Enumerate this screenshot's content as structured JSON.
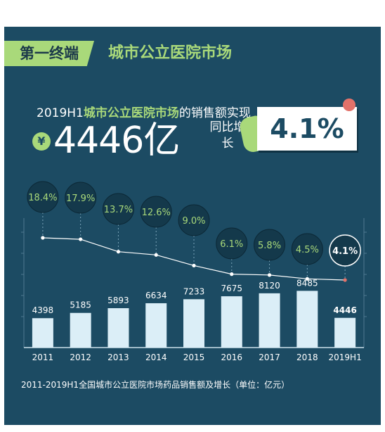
{
  "header": {
    "tag": "第一终端",
    "title": "城市公立医院市场"
  },
  "headline": {
    "prefix": "2019H1",
    "highlight": "城市公立医院市场",
    "suffix": "的销售额实现",
    "currency_symbol": "¥",
    "value": "4446亿",
    "yoy_label": "同比增长",
    "yoy_value": "4.1%"
  },
  "chart_data": {
    "type": "bar",
    "categories": [
      "2011",
      "2012",
      "2013",
      "2014",
      "2015",
      "2016",
      "2017",
      "2018",
      "2019H1"
    ],
    "series": [
      {
        "values": [
          4398,
          5185,
          5893,
          6634,
          7233,
          7675,
          8120,
          8485,
          4446
        ]
      },
      {
        "type": "line",
        "values": [
          18.4,
          17.9,
          13.7,
          12.6,
          9.0,
          6.1,
          5.8,
          4.5,
          4.1
        ]
      }
    ],
    "value_labels": [
      "4398",
      "5185",
      "5893",
      "6634",
      "7233",
      "7675",
      "8120",
      "8485",
      "4446"
    ],
    "growth_labels": [
      "18.4%",
      "17.9%",
      "13.7%",
      "12.6%",
      "9.0%",
      "6.1%",
      "5.8%",
      "4.5%",
      "4.1%"
    ],
    "title": "",
    "xlabel": "",
    "ylabel": "",
    "grid": true,
    "legend": "none",
    "colors": {
      "bar": "#dbeef7",
      "bar_highlight": "#dbeef7",
      "line": "#ffffff",
      "bubble": "#14394b",
      "label_green": "#a9d97a",
      "highlight_dot": "#e2726a"
    }
  },
  "footnote": "2011-2019H1全国城市公立医院市场药品销售额及增长（单位：亿元）"
}
